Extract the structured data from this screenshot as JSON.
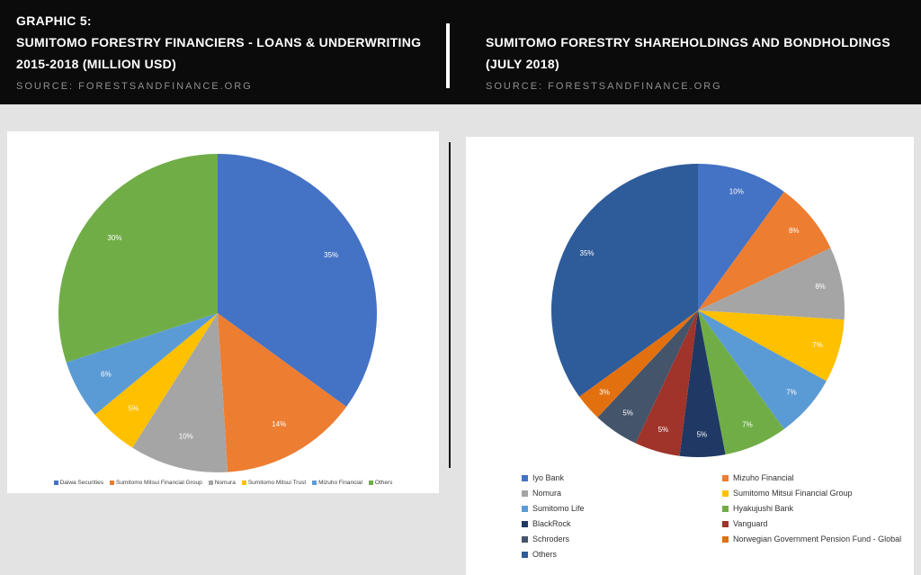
{
  "header": {
    "left": {
      "graphic_label": "GRAPHIC 5:",
      "title_line1": "SUMITOMO FORESTRY FINANCIERS - LOANS & UNDERWRITING",
      "title_line2": "2015-2018 (MILLION USD)",
      "source": "SOURCE: FORESTSANDFINANCE.ORG"
    },
    "right": {
      "title_line1": "SUMITOMO FORESTRY SHAREHOLDINGS AND BONDHOLDINGS",
      "title_line2": "(JULY 2018)",
      "source": "SOURCE: FORESTSANDFINANCE.ORG"
    }
  },
  "chart_data": [
    {
      "type": "pie",
      "title": "Sumitomo Forestry Financiers - Loans & Underwriting 2015-2018 (Million USD)",
      "labels": [
        "Daiwa Securities",
        "Sumitomo Mitsui Financial Group",
        "Nomura",
        "Sumitomo Mitsui Trust",
        "Mizuho Financial",
        "Others"
      ],
      "values": [
        35,
        14,
        10,
        5,
        6,
        30
      ],
      "value_labels": [
        "35%",
        "14%",
        "10%",
        "5%",
        "6%",
        "30%"
      ],
      "colors": [
        "#4472C4",
        "#ED7D31",
        "#A5A5A5",
        "#FFC000",
        "#5B9BD5",
        "#70AD47"
      ],
      "legend_position": "bottom",
      "start_angle_deg": 0,
      "direction": "clockwise"
    },
    {
      "type": "pie",
      "title": "Sumitomo Forestry Shareholdings and Bondholdings (July 2018)",
      "labels": [
        "Iyo Bank",
        "Mizuho Financial",
        "Nomura",
        "Sumitomo Mitsui Financial Group",
        "Sumitomo Life",
        "Hyakujushi Bank",
        "BlackRock",
        "Vanguard",
        "Schroders",
        "Norwegian Government Pension Fund - Global",
        "Others"
      ],
      "values": [
        10,
        8,
        8,
        7,
        7,
        7,
        5,
        5,
        5,
        3,
        35
      ],
      "value_labels": [
        "10%",
        "8%",
        "8%",
        "7%",
        "7%",
        "7%",
        "5%",
        "5%",
        "5%",
        "3%",
        "35%"
      ],
      "colors": [
        "#4472C4",
        "#ED7D31",
        "#A5A5A5",
        "#FFC000",
        "#5B9BD5",
        "#70AD47",
        "#1F3864",
        "#A0342A",
        "#44546A",
        "#E2700F",
        "#2E5B9A"
      ],
      "legend_position": "bottom",
      "start_angle_deg": 0,
      "direction": "clockwise"
    }
  ]
}
